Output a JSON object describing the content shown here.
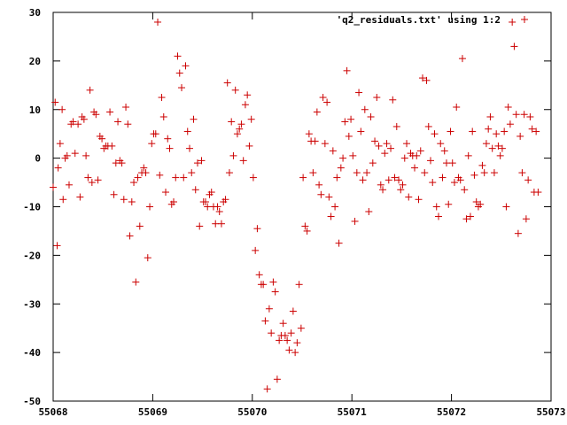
{
  "chart_data": {
    "type": "scatter",
    "title": "",
    "xlabel": "",
    "ylabel": "",
    "xlim": [
      55068,
      55073
    ],
    "ylim": [
      -50,
      30
    ],
    "xticks": [
      55068,
      55069,
      55070,
      55071,
      55072,
      55073
    ],
    "yticks": [
      -50,
      -40,
      -30,
      -20,
      -10,
      0,
      10,
      20,
      30
    ],
    "grid": false,
    "legend_position": "top-right",
    "marker": "+",
    "series": [
      {
        "name": "'q2_residuals.txt' using 1:2",
        "color": "#cc0000",
        "points": [
          [
            55068.0,
            -6
          ],
          [
            55068.02,
            11.5
          ],
          [
            55068.04,
            -18
          ],
          [
            55068.05,
            -2
          ],
          [
            55068.07,
            3
          ],
          [
            55068.09,
            10
          ],
          [
            55068.1,
            -8.5
          ],
          [
            55068.12,
            0
          ],
          [
            55068.14,
            0.5
          ],
          [
            55068.16,
            -5.5
          ],
          [
            55068.18,
            7
          ],
          [
            55068.2,
            7.5
          ],
          [
            55068.22,
            1
          ],
          [
            55068.25,
            7
          ],
          [
            55068.27,
            -8
          ],
          [
            55068.29,
            8.5
          ],
          [
            55068.31,
            8
          ],
          [
            55068.33,
            0.5
          ],
          [
            55068.35,
            -4
          ],
          [
            55068.37,
            14
          ],
          [
            55068.39,
            -5
          ],
          [
            55068.41,
            9.5
          ],
          [
            55068.43,
            9
          ],
          [
            55068.45,
            -4.5
          ],
          [
            55068.47,
            4.5
          ],
          [
            55068.49,
            4
          ],
          [
            55068.51,
            2
          ],
          [
            55068.53,
            2.5
          ],
          [
            55068.55,
            2.5
          ],
          [
            55068.57,
            9.5
          ],
          [
            55068.59,
            2.5
          ],
          [
            55068.61,
            -7.5
          ],
          [
            55068.63,
            -1
          ],
          [
            55068.65,
            7.5
          ],
          [
            55068.67,
            -0.5
          ],
          [
            55068.69,
            -1
          ],
          [
            55068.71,
            -8.5
          ],
          [
            55068.73,
            10.5
          ],
          [
            55068.75,
            7
          ],
          [
            55068.77,
            -16
          ],
          [
            55068.79,
            -9
          ],
          [
            55068.81,
            -5
          ],
          [
            55068.83,
            -25.5
          ],
          [
            55068.85,
            -4
          ],
          [
            55068.87,
            -14
          ],
          [
            55068.89,
            -3
          ],
          [
            55068.91,
            -2
          ],
          [
            55068.93,
            -3
          ],
          [
            55068.95,
            -20.5
          ],
          [
            55068.97,
            -10
          ],
          [
            55068.99,
            3
          ],
          [
            55069.01,
            5
          ],
          [
            55069.03,
            5
          ],
          [
            55069.05,
            28
          ],
          [
            55069.07,
            -3.5
          ],
          [
            55069.09,
            12.5
          ],
          [
            55069.11,
            8.5
          ],
          [
            55069.13,
            -7
          ],
          [
            55069.15,
            4
          ],
          [
            55069.17,
            2
          ],
          [
            55069.19,
            -9.5
          ],
          [
            55069.21,
            -9
          ],
          [
            55069.23,
            -4
          ],
          [
            55069.25,
            21
          ],
          [
            55069.27,
            17.5
          ],
          [
            55069.29,
            14.5
          ],
          [
            55069.31,
            -4
          ],
          [
            55069.33,
            19
          ],
          [
            55069.35,
            5.5
          ],
          [
            55069.37,
            2
          ],
          [
            55069.39,
            -3
          ],
          [
            55069.41,
            8
          ],
          [
            55069.43,
            -6.5
          ],
          [
            55069.45,
            -1
          ],
          [
            55069.47,
            -14
          ],
          [
            55069.49,
            -0.5
          ],
          [
            55069.51,
            -9
          ],
          [
            55069.53,
            -9
          ],
          [
            55069.55,
            -10
          ],
          [
            55069.57,
            -7.5
          ],
          [
            55069.59,
            -7
          ],
          [
            55069.61,
            -10
          ],
          [
            55069.63,
            -13.5
          ],
          [
            55069.65,
            -10
          ],
          [
            55069.67,
            -11
          ],
          [
            55069.69,
            -13.5
          ],
          [
            55069.71,
            -9
          ],
          [
            55069.73,
            -8.5
          ],
          [
            55069.75,
            15.5
          ],
          [
            55069.77,
            -3
          ],
          [
            55069.79,
            7.5
          ],
          [
            55069.81,
            0.5
          ],
          [
            55069.83,
            14
          ],
          [
            55069.85,
            5
          ],
          [
            55069.87,
            6
          ],
          [
            55069.89,
            7
          ],
          [
            55069.91,
            -0.5
          ],
          [
            55069.93,
            11
          ],
          [
            55069.95,
            13
          ],
          [
            55069.97,
            2.5
          ],
          [
            55069.99,
            8
          ],
          [
            55070.01,
            -4
          ],
          [
            55070.03,
            -19
          ],
          [
            55070.05,
            -14.5
          ],
          [
            55070.07,
            -24
          ],
          [
            55070.09,
            -26
          ],
          [
            55070.11,
            -26
          ],
          [
            55070.13,
            -33.5
          ],
          [
            55070.15,
            -47.5
          ],
          [
            55070.17,
            -31
          ],
          [
            55070.19,
            -36
          ],
          [
            55070.21,
            -25.5
          ],
          [
            55070.23,
            -27.5
          ],
          [
            55070.25,
            -45.5
          ],
          [
            55070.27,
            -37.5
          ],
          [
            55070.29,
            -36.5
          ],
          [
            55070.31,
            -34
          ],
          [
            55070.33,
            -36.5
          ],
          [
            55070.35,
            -37.5
          ],
          [
            55070.37,
            -39.5
          ],
          [
            55070.39,
            -36
          ],
          [
            55070.41,
            -31.5
          ],
          [
            55070.43,
            -40
          ],
          [
            55070.45,
            -38
          ],
          [
            55070.47,
            -26
          ],
          [
            55070.49,
            -35
          ],
          [
            55070.51,
            -4
          ],
          [
            55070.53,
            -14
          ],
          [
            55070.55,
            -15
          ],
          [
            55070.57,
            5
          ],
          [
            55070.59,
            3.5
          ],
          [
            55070.61,
            -3
          ],
          [
            55070.63,
            3.5
          ],
          [
            55070.65,
            9.5
          ],
          [
            55070.67,
            -5.5
          ],
          [
            55070.69,
            -7.5
          ],
          [
            55070.71,
            12.5
          ],
          [
            55070.73,
            3
          ],
          [
            55070.75,
            11.5
          ],
          [
            55070.77,
            -8
          ],
          [
            55070.79,
            -12
          ],
          [
            55070.81,
            1.5
          ],
          [
            55070.83,
            -10
          ],
          [
            55070.85,
            -4
          ],
          [
            55070.87,
            -17.5
          ],
          [
            55070.89,
            -2
          ],
          [
            55070.91,
            0
          ],
          [
            55070.93,
            7.5
          ],
          [
            55070.95,
            18
          ],
          [
            55070.97,
            4.5
          ],
          [
            55070.99,
            8
          ],
          [
            55071.01,
            0.5
          ],
          [
            55071.03,
            -13
          ],
          [
            55071.05,
            -3
          ],
          [
            55071.07,
            13.5
          ],
          [
            55071.09,
            5.5
          ],
          [
            55071.11,
            -4.5
          ],
          [
            55071.13,
            10
          ],
          [
            55071.15,
            -3
          ],
          [
            55071.17,
            -11
          ],
          [
            55071.19,
            8.5
          ],
          [
            55071.21,
            -1
          ],
          [
            55071.23,
            3.5
          ],
          [
            55071.25,
            12.5
          ],
          [
            55071.27,
            2.5
          ],
          [
            55071.29,
            -5.5
          ],
          [
            55071.31,
            -6.5
          ],
          [
            55071.33,
            1
          ],
          [
            55071.35,
            3
          ],
          [
            55071.37,
            -4.5
          ],
          [
            55071.39,
            2
          ],
          [
            55071.41,
            12
          ],
          [
            55071.43,
            -4
          ],
          [
            55071.45,
            6.5
          ],
          [
            55071.47,
            -4.5
          ],
          [
            55071.49,
            -6.5
          ],
          [
            55071.51,
            -5.5
          ],
          [
            55071.53,
            0
          ],
          [
            55071.55,
            3
          ],
          [
            55071.57,
            -8
          ],
          [
            55071.59,
            1
          ],
          [
            55071.61,
            0.5
          ],
          [
            55071.63,
            -2
          ],
          [
            55071.65,
            0.5
          ],
          [
            55071.67,
            -8.5
          ],
          [
            55071.69,
            1.5
          ],
          [
            55071.71,
            16.5
          ],
          [
            55071.73,
            -3
          ],
          [
            55071.75,
            16
          ],
          [
            55071.77,
            6.5
          ],
          [
            55071.79,
            -0.5
          ],
          [
            55071.81,
            -5
          ],
          [
            55071.83,
            5
          ],
          [
            55071.85,
            -10
          ],
          [
            55071.87,
            -12
          ],
          [
            55071.89,
            3
          ],
          [
            55071.91,
            -4
          ],
          [
            55071.93,
            1.5
          ],
          [
            55071.95,
            -1
          ],
          [
            55071.97,
            -9.5
          ],
          [
            55071.99,
            5.5
          ],
          [
            55072.01,
            -1
          ],
          [
            55072.03,
            -5
          ],
          [
            55072.05,
            10.5
          ],
          [
            55072.07,
            -4
          ],
          [
            55072.09,
            -4.5
          ],
          [
            55072.11,
            20.5
          ],
          [
            55072.13,
            -6.5
          ],
          [
            55072.15,
            -12.5
          ],
          [
            55072.17,
            0.5
          ],
          [
            55072.19,
            -12
          ],
          [
            55072.21,
            5.5
          ],
          [
            55072.23,
            -3.5
          ],
          [
            55072.25,
            -9
          ],
          [
            55072.27,
            -10
          ],
          [
            55072.29,
            -9.5
          ],
          [
            55072.31,
            -1.5
          ],
          [
            55072.33,
            -3
          ],
          [
            55072.35,
            3
          ],
          [
            55072.37,
            6
          ],
          [
            55072.39,
            8.5
          ],
          [
            55072.41,
            2
          ],
          [
            55072.43,
            -3
          ],
          [
            55072.45,
            5
          ],
          [
            55072.47,
            2.5
          ],
          [
            55072.49,
            0.5
          ],
          [
            55072.51,
            2
          ],
          [
            55072.53,
            5.5
          ],
          [
            55072.55,
            -10
          ],
          [
            55072.57,
            10.5
          ],
          [
            55072.59,
            7
          ],
          [
            55072.61,
            28
          ],
          [
            55072.63,
            23
          ],
          [
            55072.65,
            9
          ],
          [
            55072.67,
            -15.5
          ],
          [
            55072.69,
            4.5
          ],
          [
            55072.71,
            -3
          ],
          [
            55072.73,
            9
          ],
          [
            55072.75,
            -12.5
          ],
          [
            55072.77,
            -4.5
          ],
          [
            55072.79,
            8.5
          ],
          [
            55072.81,
            6
          ],
          [
            55072.83,
            -7
          ],
          [
            55072.85,
            5.5
          ],
          [
            55072.87,
            -7
          ]
        ]
      }
    ]
  }
}
